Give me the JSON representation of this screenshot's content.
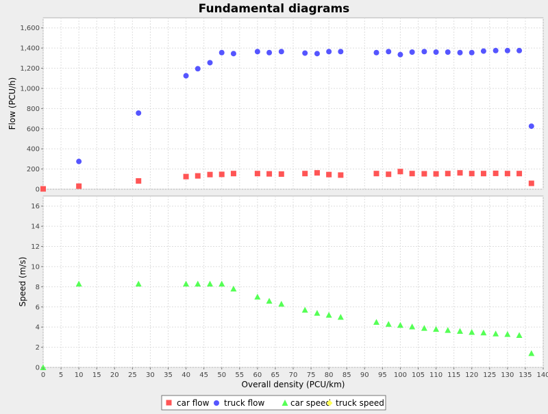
{
  "chart_data": {
    "type": "scatter",
    "title": "Fundamental diagrams",
    "xlabel": "Overall density (PCU/km)",
    "xlim": [
      0,
      140
    ],
    "x_ticks": [
      "0",
      "5",
      "10",
      "15",
      "20",
      "25",
      "30",
      "35",
      "40",
      "45",
      "50",
      "55",
      "60",
      "65",
      "70",
      "75",
      "80",
      "85",
      "90",
      "95",
      "100",
      "105",
      "110",
      "115",
      "120",
      "125",
      "130",
      "135",
      "140"
    ],
    "grid": true,
    "legend_position": "bottom",
    "panels": [
      {
        "name": "flow",
        "ylabel": "Flow (PCU/h)",
        "ylim": [
          0,
          1700
        ],
        "y_ticks": [
          "0",
          "200",
          "400",
          "600",
          "800",
          "1,000",
          "1,200",
          "1,400",
          "1,600"
        ]
      },
      {
        "name": "speed",
        "ylabel": "Speed (m/s)",
        "ylim": [
          0,
          17
        ],
        "y_ticks": [
          "0",
          "2",
          "4",
          "6",
          "8",
          "10",
          "12",
          "14",
          "16"
        ]
      }
    ],
    "series": [
      {
        "name": "car flow",
        "panel": 0,
        "marker": "square",
        "color": "#ff5555",
        "points": [
          [
            0,
            3
          ],
          [
            10,
            30
          ],
          [
            26.7,
            82
          ],
          [
            40,
            125
          ],
          [
            43.3,
            132
          ],
          [
            46.7,
            145
          ],
          [
            50,
            147
          ],
          [
            53.3,
            155
          ],
          [
            60,
            155
          ],
          [
            63.3,
            152
          ],
          [
            66.7,
            150
          ],
          [
            73.3,
            155
          ],
          [
            76.7,
            162
          ],
          [
            80,
            145
          ],
          [
            83.3,
            140
          ],
          [
            93.3,
            155
          ],
          [
            96.7,
            148
          ],
          [
            100,
            175
          ],
          [
            103.3,
            155
          ],
          [
            106.7,
            153
          ],
          [
            110,
            152
          ],
          [
            113.3,
            155
          ],
          [
            116.7,
            162
          ],
          [
            120,
            155
          ],
          [
            123.3,
            155
          ],
          [
            126.7,
            157
          ],
          [
            130,
            155
          ],
          [
            133.3,
            155
          ],
          [
            136.7,
            58
          ]
        ]
      },
      {
        "name": "truck flow",
        "panel": 0,
        "marker": "circle",
        "color": "#5555ff",
        "points": [
          [
            10,
            275
          ],
          [
            26.7,
            755
          ],
          [
            40,
            1125
          ],
          [
            43.3,
            1195
          ],
          [
            46.7,
            1255
          ],
          [
            50,
            1355
          ],
          [
            53.3,
            1345
          ],
          [
            60,
            1365
          ],
          [
            63.3,
            1355
          ],
          [
            66.7,
            1365
          ],
          [
            73.3,
            1350
          ],
          [
            76.7,
            1345
          ],
          [
            80,
            1365
          ],
          [
            83.3,
            1365
          ],
          [
            93.3,
            1355
          ],
          [
            96.7,
            1365
          ],
          [
            100,
            1335
          ],
          [
            103.3,
            1360
          ],
          [
            106.7,
            1365
          ],
          [
            110,
            1360
          ],
          [
            113.3,
            1360
          ],
          [
            116.7,
            1355
          ],
          [
            120,
            1355
          ],
          [
            123.3,
            1370
          ],
          [
            126.7,
            1375
          ],
          [
            130,
            1375
          ],
          [
            133.3,
            1375
          ],
          [
            136.7,
            625
          ]
        ]
      },
      {
        "name": "car speed",
        "panel": 1,
        "marker": "triangle",
        "color": "#55ff55",
        "points": [
          [
            0,
            0
          ],
          [
            10,
            8.3
          ],
          [
            26.7,
            8.3
          ],
          [
            40,
            8.3
          ],
          [
            43.3,
            8.3
          ],
          [
            46.7,
            8.3
          ],
          [
            50,
            8.3
          ],
          [
            53.3,
            7.8
          ],
          [
            60,
            7
          ],
          [
            63.3,
            6.6
          ],
          [
            66.7,
            6.3
          ],
          [
            73.3,
            5.7
          ],
          [
            76.7,
            5.4
          ],
          [
            80,
            5.2
          ],
          [
            83.3,
            5
          ],
          [
            93.3,
            4.5
          ],
          [
            96.7,
            4.3
          ],
          [
            100,
            4.2
          ],
          [
            103.3,
            4.05
          ],
          [
            106.7,
            3.9
          ],
          [
            110,
            3.8
          ],
          [
            113.3,
            3.7
          ],
          [
            116.7,
            3.6
          ],
          [
            120,
            3.5
          ],
          [
            123.3,
            3.45
          ],
          [
            126.7,
            3.35
          ],
          [
            130,
            3.3
          ],
          [
            133.3,
            3.2
          ],
          [
            136.7,
            1.4
          ]
        ]
      },
      {
        "name": "truck speed",
        "panel": 1,
        "marker": "diamond",
        "color": "#ffff55",
        "points": []
      }
    ]
  }
}
